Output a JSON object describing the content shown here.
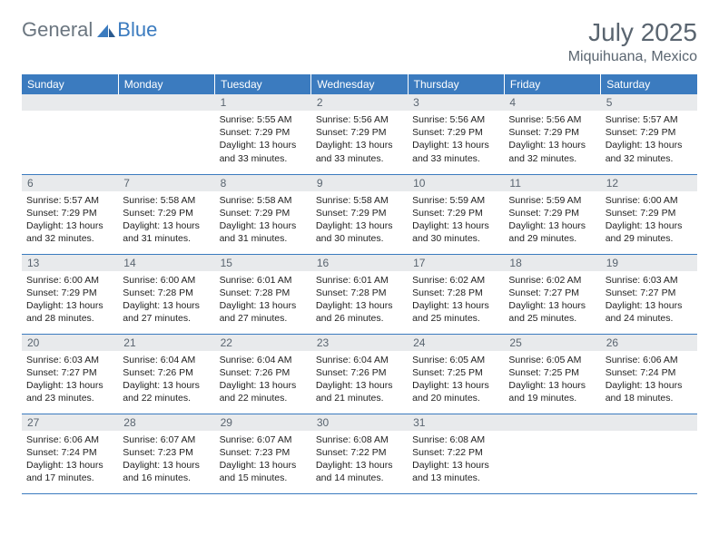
{
  "logo": {
    "text_gray": "General",
    "text_blue": "Blue"
  },
  "title": "July 2025",
  "location": "Miquihuana, Mexico",
  "day_headers": [
    "Sunday",
    "Monday",
    "Tuesday",
    "Wednesday",
    "Thursday",
    "Friday",
    "Saturday"
  ],
  "colors": {
    "header_bg": "#3b7bbf",
    "header_text": "#ffffff",
    "daynum_bg": "#e8eaec",
    "text_color": "#5a6570",
    "row_border": "#3b7bbf"
  },
  "weeks": [
    [
      {
        "empty": true
      },
      {
        "empty": true
      },
      {
        "day": "1",
        "sunrise": "Sunrise: 5:55 AM",
        "sunset": "Sunset: 7:29 PM",
        "daylight": "Daylight: 13 hours and 33 minutes."
      },
      {
        "day": "2",
        "sunrise": "Sunrise: 5:56 AM",
        "sunset": "Sunset: 7:29 PM",
        "daylight": "Daylight: 13 hours and 33 minutes."
      },
      {
        "day": "3",
        "sunrise": "Sunrise: 5:56 AM",
        "sunset": "Sunset: 7:29 PM",
        "daylight": "Daylight: 13 hours and 33 minutes."
      },
      {
        "day": "4",
        "sunrise": "Sunrise: 5:56 AM",
        "sunset": "Sunset: 7:29 PM",
        "daylight": "Daylight: 13 hours and 32 minutes."
      },
      {
        "day": "5",
        "sunrise": "Sunrise: 5:57 AM",
        "sunset": "Sunset: 7:29 PM",
        "daylight": "Daylight: 13 hours and 32 minutes."
      }
    ],
    [
      {
        "day": "6",
        "sunrise": "Sunrise: 5:57 AM",
        "sunset": "Sunset: 7:29 PM",
        "daylight": "Daylight: 13 hours and 32 minutes."
      },
      {
        "day": "7",
        "sunrise": "Sunrise: 5:58 AM",
        "sunset": "Sunset: 7:29 PM",
        "daylight": "Daylight: 13 hours and 31 minutes."
      },
      {
        "day": "8",
        "sunrise": "Sunrise: 5:58 AM",
        "sunset": "Sunset: 7:29 PM",
        "daylight": "Daylight: 13 hours and 31 minutes."
      },
      {
        "day": "9",
        "sunrise": "Sunrise: 5:58 AM",
        "sunset": "Sunset: 7:29 PM",
        "daylight": "Daylight: 13 hours and 30 minutes."
      },
      {
        "day": "10",
        "sunrise": "Sunrise: 5:59 AM",
        "sunset": "Sunset: 7:29 PM",
        "daylight": "Daylight: 13 hours and 30 minutes."
      },
      {
        "day": "11",
        "sunrise": "Sunrise: 5:59 AM",
        "sunset": "Sunset: 7:29 PM",
        "daylight": "Daylight: 13 hours and 29 minutes."
      },
      {
        "day": "12",
        "sunrise": "Sunrise: 6:00 AM",
        "sunset": "Sunset: 7:29 PM",
        "daylight": "Daylight: 13 hours and 29 minutes."
      }
    ],
    [
      {
        "day": "13",
        "sunrise": "Sunrise: 6:00 AM",
        "sunset": "Sunset: 7:29 PM",
        "daylight": "Daylight: 13 hours and 28 minutes."
      },
      {
        "day": "14",
        "sunrise": "Sunrise: 6:00 AM",
        "sunset": "Sunset: 7:28 PM",
        "daylight": "Daylight: 13 hours and 27 minutes."
      },
      {
        "day": "15",
        "sunrise": "Sunrise: 6:01 AM",
        "sunset": "Sunset: 7:28 PM",
        "daylight": "Daylight: 13 hours and 27 minutes."
      },
      {
        "day": "16",
        "sunrise": "Sunrise: 6:01 AM",
        "sunset": "Sunset: 7:28 PM",
        "daylight": "Daylight: 13 hours and 26 minutes."
      },
      {
        "day": "17",
        "sunrise": "Sunrise: 6:02 AM",
        "sunset": "Sunset: 7:28 PM",
        "daylight": "Daylight: 13 hours and 25 minutes."
      },
      {
        "day": "18",
        "sunrise": "Sunrise: 6:02 AM",
        "sunset": "Sunset: 7:27 PM",
        "daylight": "Daylight: 13 hours and 25 minutes."
      },
      {
        "day": "19",
        "sunrise": "Sunrise: 6:03 AM",
        "sunset": "Sunset: 7:27 PM",
        "daylight": "Daylight: 13 hours and 24 minutes."
      }
    ],
    [
      {
        "day": "20",
        "sunrise": "Sunrise: 6:03 AM",
        "sunset": "Sunset: 7:27 PM",
        "daylight": "Daylight: 13 hours and 23 minutes."
      },
      {
        "day": "21",
        "sunrise": "Sunrise: 6:04 AM",
        "sunset": "Sunset: 7:26 PM",
        "daylight": "Daylight: 13 hours and 22 minutes."
      },
      {
        "day": "22",
        "sunrise": "Sunrise: 6:04 AM",
        "sunset": "Sunset: 7:26 PM",
        "daylight": "Daylight: 13 hours and 22 minutes."
      },
      {
        "day": "23",
        "sunrise": "Sunrise: 6:04 AM",
        "sunset": "Sunset: 7:26 PM",
        "daylight": "Daylight: 13 hours and 21 minutes."
      },
      {
        "day": "24",
        "sunrise": "Sunrise: 6:05 AM",
        "sunset": "Sunset: 7:25 PM",
        "daylight": "Daylight: 13 hours and 20 minutes."
      },
      {
        "day": "25",
        "sunrise": "Sunrise: 6:05 AM",
        "sunset": "Sunset: 7:25 PM",
        "daylight": "Daylight: 13 hours and 19 minutes."
      },
      {
        "day": "26",
        "sunrise": "Sunrise: 6:06 AM",
        "sunset": "Sunset: 7:24 PM",
        "daylight": "Daylight: 13 hours and 18 minutes."
      }
    ],
    [
      {
        "day": "27",
        "sunrise": "Sunrise: 6:06 AM",
        "sunset": "Sunset: 7:24 PM",
        "daylight": "Daylight: 13 hours and 17 minutes."
      },
      {
        "day": "28",
        "sunrise": "Sunrise: 6:07 AM",
        "sunset": "Sunset: 7:23 PM",
        "daylight": "Daylight: 13 hours and 16 minutes."
      },
      {
        "day": "29",
        "sunrise": "Sunrise: 6:07 AM",
        "sunset": "Sunset: 7:23 PM",
        "daylight": "Daylight: 13 hours and 15 minutes."
      },
      {
        "day": "30",
        "sunrise": "Sunrise: 6:08 AM",
        "sunset": "Sunset: 7:22 PM",
        "daylight": "Daylight: 13 hours and 14 minutes."
      },
      {
        "day": "31",
        "sunrise": "Sunrise: 6:08 AM",
        "sunset": "Sunset: 7:22 PM",
        "daylight": "Daylight: 13 hours and 13 minutes."
      },
      {
        "empty": true
      },
      {
        "empty": true
      }
    ]
  ]
}
